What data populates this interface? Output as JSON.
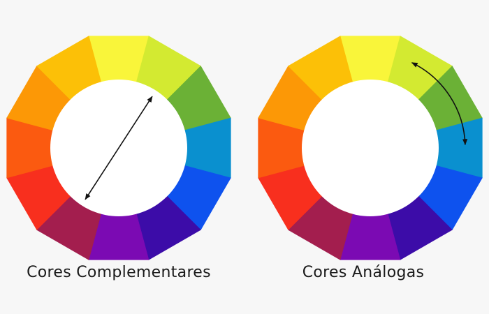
{
  "wheel_colors": [
    "#f9f53a",
    "#d3ea31",
    "#6bb136",
    "#0a90cf",
    "#0e52ee",
    "#3c0ca8",
    "#7b0ab3",
    "#a31e4e",
    "#f82f1e",
    "#fb5a10",
    "#fc9806",
    "#fcc007"
  ],
  "diagrams": [
    {
      "caption": "Cores Complementares",
      "arrow": {
        "from_segment": 1,
        "to_segment": 7,
        "type": "straight-double"
      }
    },
    {
      "caption": "Cores Análogas",
      "arrow": {
        "from_segment": 1,
        "to_segment": 3,
        "type": "curved-double"
      }
    }
  ]
}
